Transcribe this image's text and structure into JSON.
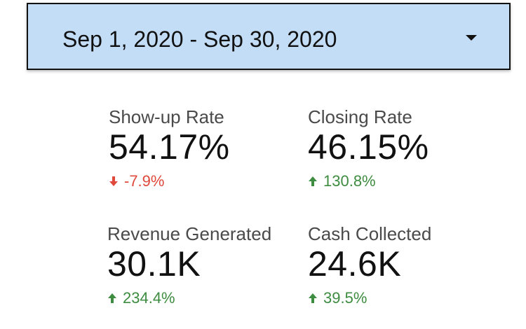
{
  "date_range": {
    "label": "Sep 1, 2020 - Sep 30, 2020",
    "icon": "dropdown-arrow-icon"
  },
  "scorecards": [
    {
      "label": "Show-up Rate",
      "value": "54.17%",
      "delta": "-7.9%",
      "direction": "down",
      "icon": "arrow-down-icon",
      "color": "#e0483c"
    },
    {
      "label": "Closing Rate",
      "value": "46.15%",
      "delta": "130.8%",
      "direction": "up",
      "icon": "arrow-up-icon",
      "color": "#3d8c40"
    },
    {
      "label": "Revenue Generated",
      "value": "30.1K",
      "delta": "234.4%",
      "direction": "up",
      "icon": "arrow-up-icon",
      "color": "#3d8c40"
    },
    {
      "label": "Cash Collected",
      "value": "24.6K",
      "delta": "39.5%",
      "direction": "up",
      "icon": "arrow-up-icon",
      "color": "#3d8c40"
    }
  ],
  "colors": {
    "picker_background": "#c3ddf7",
    "positive": "#3d8c40",
    "negative": "#e0483c"
  }
}
